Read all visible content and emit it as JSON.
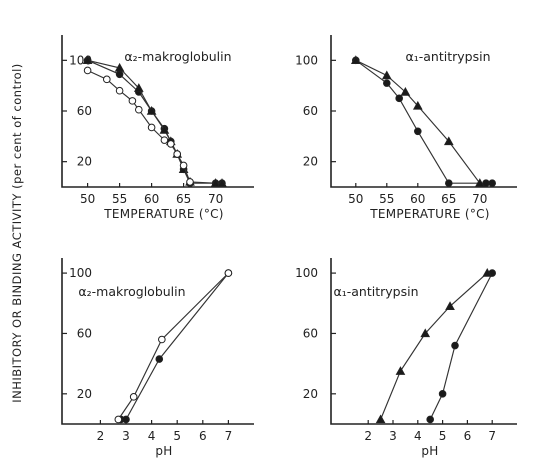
{
  "figure": {
    "ylabel": "INHIBITORY OR BINDING ACTIVITY (per cent of control)"
  },
  "chart_data": [
    {
      "type": "line",
      "title": "α₂-makroglobulin",
      "xlabel": "TEMPERATURE (°C)",
      "ylabel": "",
      "xlim": [
        46,
        76
      ],
      "ylim": [
        0,
        120
      ],
      "xticks": [
        50,
        55,
        60,
        65,
        70
      ],
      "yticks": [
        20,
        60,
        100
      ],
      "series": [
        {
          "marker": "filled-circle",
          "x": [
            50,
            55,
            58,
            60,
            62,
            63,
            64,
            65,
            66,
            70,
            71
          ],
          "y": [
            100,
            89,
            75,
            60,
            46,
            36,
            26,
            14,
            3,
            3,
            3
          ]
        },
        {
          "marker": "filled-triangle",
          "x": [
            50,
            55,
            58,
            60,
            62,
            63,
            64,
            65,
            66,
            70,
            71
          ],
          "y": [
            100,
            94,
            78,
            60,
            45,
            36,
            26,
            14,
            4,
            3,
            3
          ]
        },
        {
          "marker": "open-circle",
          "x": [
            50,
            53,
            55,
            57,
            58,
            60,
            62,
            63,
            64,
            65,
            66
          ],
          "y": [
            92,
            85,
            76,
            68,
            61,
            47,
            37,
            34,
            26,
            17,
            4
          ]
        }
      ]
    },
    {
      "type": "line",
      "title": "α₁-antitrypsin",
      "xlabel": "TEMPERATURE (°C)",
      "ylabel": "",
      "xlim": [
        46,
        76
      ],
      "ylim": [
        0,
        120
      ],
      "xticks": [
        50,
        55,
        60,
        65,
        70
      ],
      "yticks": [
        20,
        60,
        100
      ],
      "series": [
        {
          "marker": "filled-circle",
          "x": [
            50,
            55,
            57,
            60,
            65,
            71,
            72
          ],
          "y": [
            100,
            82,
            70,
            44,
            3,
            3,
            3
          ]
        },
        {
          "marker": "filled-triangle",
          "x": [
            50,
            55,
            58,
            60,
            65,
            70
          ],
          "y": [
            100,
            88,
            75,
            64,
            36,
            3
          ]
        }
      ]
    },
    {
      "type": "line",
      "title": "α₂-makroglobulin",
      "xlabel": "pH",
      "ylabel": "",
      "xlim": [
        0.5,
        8
      ],
      "ylim": [
        0,
        110
      ],
      "xticks": [
        2,
        3,
        4,
        5,
        6,
        7
      ],
      "yticks": [
        20,
        60,
        100
      ],
      "series": [
        {
          "marker": "filled-circle",
          "x": [
            2.8,
            3.0,
            4.3,
            7.0
          ],
          "y": [
            3,
            3,
            43,
            100
          ]
        },
        {
          "marker": "open-circle",
          "x": [
            2.7,
            3.3,
            4.4,
            7.0
          ],
          "y": [
            3,
            18,
            56,
            100
          ]
        }
      ]
    },
    {
      "type": "line",
      "title": "α₁-antitrypsin",
      "xlabel": "pH",
      "ylabel": "",
      "xlim": [
        0.5,
        8
      ],
      "ylim": [
        0,
        110
      ],
      "xticks": [
        2,
        3,
        4,
        5,
        6,
        7
      ],
      "yticks": [
        20,
        60,
        100
      ],
      "series": [
        {
          "marker": "filled-circle",
          "x": [
            4.5,
            5.0,
            5.5,
            7.0
          ],
          "y": [
            3,
            20,
            52,
            100
          ]
        },
        {
          "marker": "filled-triangle",
          "x": [
            2.5,
            3.3,
            4.3,
            5.3,
            6.8
          ],
          "y": [
            3,
            35,
            60,
            78,
            100
          ]
        }
      ]
    }
  ]
}
